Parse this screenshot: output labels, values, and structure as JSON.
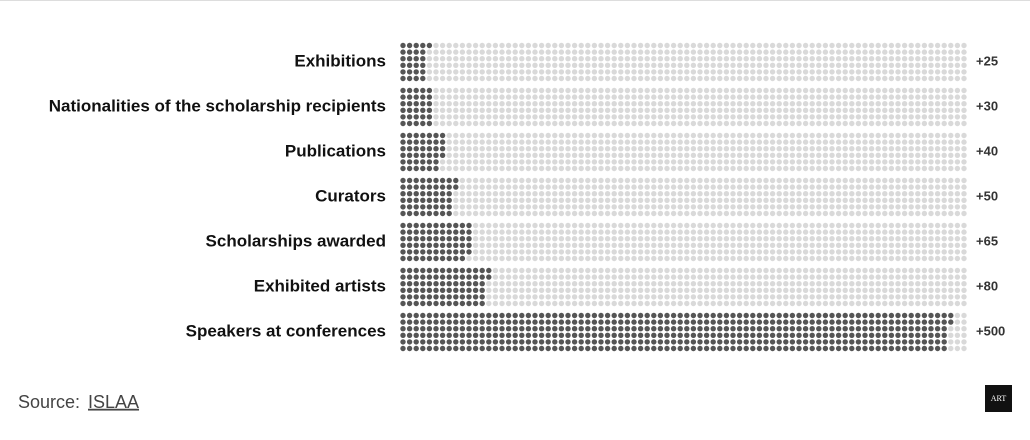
{
  "chart_data": {
    "type": "dot-bar",
    "categories": [
      "Exhibitions",
      "Nationalities of the scholarship recipients",
      "Publications",
      "Curators",
      "Scholarships awarded",
      "Exhibited artists",
      "Speakers at conferences"
    ],
    "values": [
      25,
      30,
      40,
      50,
      65,
      80,
      500
    ],
    "value_labels": [
      "+25",
      "+30",
      "+40",
      "+50",
      "+65",
      "+80",
      "+500"
    ],
    "color": "#555555",
    "source_prefix": "Source:",
    "source_link": "ISLAA",
    "logo": "ART"
  }
}
